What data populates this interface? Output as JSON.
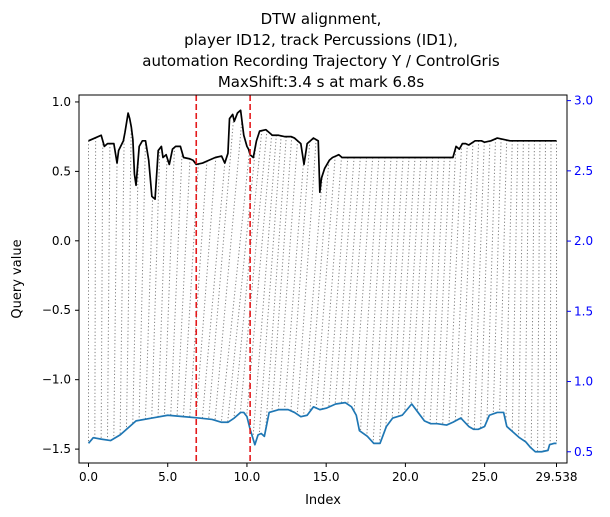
{
  "chart_data": {
    "type": "line",
    "title_lines": [
      "DTW alignment,",
      "player ID12, track Percussions (ID1),",
      "automation Recording Trajectory Y / ControlGris",
      "MaxShift:3.4 s at mark 6.8s"
    ],
    "xlabel": "Index",
    "ylabel": "Query value",
    "xlim": [
      -0.6,
      30.2
    ],
    "ylim": [
      -1.6,
      1.05
    ],
    "y2lim": [
      0.42,
      3.04
    ],
    "x_ticks": [
      0.0,
      5.0,
      10.0,
      15.0,
      20.0,
      25.0,
      29.538
    ],
    "x_tick_labels": [
      "0.0",
      "5.0",
      "10.0",
      "15.0",
      "20.0",
      "25.0",
      "29.538"
    ],
    "y_ticks": [
      -1.5,
      -1.0,
      -0.5,
      0.0,
      0.5,
      1.0
    ],
    "y_tick_labels": [
      "−1.5",
      "−1.0",
      "−0.5",
      "0.0",
      "0.5",
      "1.0"
    ],
    "y2_ticks": [
      0.5,
      1.0,
      1.5,
      2.0,
      2.5,
      3.0
    ],
    "y2_tick_labels": [
      "0.5",
      "1.0",
      "1.5",
      "2.0",
      "2.5",
      "3.0"
    ],
    "colors": {
      "query": "#000000",
      "reference": "#1f77b4",
      "markers": "#e41a1c",
      "alignment": "#808080",
      "right_axis": "#0000ff"
    },
    "markers_x": [
      6.8,
      10.2
    ],
    "grid": false,
    "series": [
      {
        "axis": "left",
        "points": [
          [
            0.0,
            0.72
          ],
          [
            0.4,
            0.74
          ],
          [
            0.8,
            0.76
          ],
          [
            1.0,
            0.68
          ],
          [
            1.2,
            0.7
          ],
          [
            1.6,
            0.7
          ],
          [
            1.8,
            0.56
          ],
          [
            1.9,
            0.65
          ],
          [
            2.2,
            0.72
          ],
          [
            2.3,
            0.78
          ],
          [
            2.5,
            0.92
          ],
          [
            2.6,
            0.88
          ],
          [
            2.7,
            0.82
          ],
          [
            2.8,
            0.73
          ],
          [
            2.9,
            0.48
          ],
          [
            3.0,
            0.4
          ],
          [
            3.2,
            0.68
          ],
          [
            3.4,
            0.72
          ],
          [
            3.6,
            0.72
          ],
          [
            3.8,
            0.58
          ],
          [
            4.0,
            0.32
          ],
          [
            4.2,
            0.3
          ],
          [
            4.4,
            0.65
          ],
          [
            4.6,
            0.68
          ],
          [
            4.7,
            0.6
          ],
          [
            4.9,
            0.62
          ],
          [
            5.1,
            0.55
          ],
          [
            5.3,
            0.66
          ],
          [
            5.5,
            0.68
          ],
          [
            5.8,
            0.68
          ],
          [
            6.0,
            0.6
          ],
          [
            6.4,
            0.59
          ],
          [
            6.6,
            0.58
          ],
          [
            6.8,
            0.55
          ],
          [
            7.2,
            0.56
          ],
          [
            7.6,
            0.58
          ],
          [
            8.0,
            0.6
          ],
          [
            8.4,
            0.61
          ],
          [
            8.6,
            0.56
          ],
          [
            8.8,
            0.63
          ],
          [
            8.9,
            0.88
          ],
          [
            9.1,
            0.91
          ],
          [
            9.2,
            0.86
          ],
          [
            9.4,
            0.92
          ],
          [
            9.6,
            0.94
          ],
          [
            9.8,
            0.76
          ],
          [
            10.0,
            0.68
          ],
          [
            10.1,
            0.66
          ],
          [
            10.2,
            0.62
          ],
          [
            10.4,
            0.6
          ],
          [
            10.6,
            0.72
          ],
          [
            10.8,
            0.79
          ],
          [
            11.2,
            0.8
          ],
          [
            11.4,
            0.78
          ],
          [
            11.6,
            0.76
          ],
          [
            12.0,
            0.76
          ],
          [
            12.4,
            0.75
          ],
          [
            12.8,
            0.75
          ],
          [
            13.0,
            0.74
          ],
          [
            13.2,
            0.72
          ],
          [
            13.4,
            0.7
          ],
          [
            13.6,
            0.55
          ],
          [
            13.8,
            0.7
          ],
          [
            14.0,
            0.72
          ],
          [
            14.2,
            0.74
          ],
          [
            14.5,
            0.72
          ],
          [
            14.6,
            0.35
          ],
          [
            14.7,
            0.45
          ],
          [
            14.9,
            0.52
          ],
          [
            15.2,
            0.58
          ],
          [
            15.4,
            0.6
          ],
          [
            15.6,
            0.61
          ],
          [
            15.8,
            0.62
          ],
          [
            16.0,
            0.6
          ],
          [
            17.0,
            0.6
          ],
          [
            18.0,
            0.6
          ],
          [
            19.0,
            0.6
          ],
          [
            20.0,
            0.6
          ],
          [
            21.0,
            0.6
          ],
          [
            22.0,
            0.6
          ],
          [
            22.5,
            0.6
          ],
          [
            23.0,
            0.6
          ],
          [
            23.2,
            0.68
          ],
          [
            23.4,
            0.66
          ],
          [
            23.6,
            0.7
          ],
          [
            23.8,
            0.7
          ],
          [
            24.0,
            0.69
          ],
          [
            24.4,
            0.72
          ],
          [
            24.8,
            0.72
          ],
          [
            25.0,
            0.71
          ],
          [
            25.4,
            0.72
          ],
          [
            25.8,
            0.74
          ],
          [
            26.2,
            0.73
          ],
          [
            26.6,
            0.72
          ],
          [
            27.0,
            0.72
          ],
          [
            28.0,
            0.72
          ],
          [
            29.0,
            0.72
          ],
          [
            29.54,
            0.72
          ]
        ]
      },
      {
        "axis": "right",
        "points": [
          [
            0.0,
            0.56
          ],
          [
            0.3,
            0.6
          ],
          [
            0.8,
            0.59
          ],
          [
            1.4,
            0.58
          ],
          [
            2.0,
            0.62
          ],
          [
            2.5,
            0.67
          ],
          [
            3.0,
            0.72
          ],
          [
            4.0,
            0.74
          ],
          [
            5.0,
            0.76
          ],
          [
            6.0,
            0.75
          ],
          [
            7.0,
            0.74
          ],
          [
            7.8,
            0.73
          ],
          [
            8.4,
            0.71
          ],
          [
            8.8,
            0.71
          ],
          [
            9.2,
            0.74
          ],
          [
            9.6,
            0.78
          ],
          [
            9.8,
            0.78
          ],
          [
            10.0,
            0.75
          ],
          [
            10.2,
            0.66
          ],
          [
            10.5,
            0.55
          ],
          [
            10.7,
            0.62
          ],
          [
            10.9,
            0.63
          ],
          [
            11.1,
            0.61
          ],
          [
            11.4,
            0.78
          ],
          [
            12.0,
            0.8
          ],
          [
            12.6,
            0.8
          ],
          [
            13.0,
            0.78
          ],
          [
            13.4,
            0.75
          ],
          [
            13.8,
            0.76
          ],
          [
            14.2,
            0.82
          ],
          [
            14.6,
            0.8
          ],
          [
            15.0,
            0.81
          ],
          [
            15.6,
            0.84
          ],
          [
            16.2,
            0.85
          ],
          [
            16.6,
            0.82
          ],
          [
            16.9,
            0.76
          ],
          [
            17.1,
            0.65
          ],
          [
            17.6,
            0.61
          ],
          [
            18.0,
            0.56
          ],
          [
            18.4,
            0.56
          ],
          [
            18.8,
            0.68
          ],
          [
            19.2,
            0.74
          ],
          [
            19.8,
            0.76
          ],
          [
            20.4,
            0.84
          ],
          [
            20.8,
            0.78
          ],
          [
            21.2,
            0.72
          ],
          [
            21.6,
            0.7
          ],
          [
            22.0,
            0.7
          ],
          [
            22.6,
            0.69
          ],
          [
            23.0,
            0.71
          ],
          [
            23.5,
            0.74
          ],
          [
            24.0,
            0.68
          ],
          [
            24.3,
            0.66
          ],
          [
            24.6,
            0.66
          ],
          [
            25.0,
            0.68
          ],
          [
            25.3,
            0.76
          ],
          [
            25.8,
            0.78
          ],
          [
            26.2,
            0.78
          ],
          [
            26.4,
            0.68
          ],
          [
            26.8,
            0.64
          ],
          [
            27.2,
            0.6
          ],
          [
            27.6,
            0.57
          ],
          [
            27.9,
            0.53
          ],
          [
            28.2,
            0.5
          ],
          [
            28.6,
            0.5
          ],
          [
            29.0,
            0.51
          ],
          [
            29.1,
            0.55
          ],
          [
            29.4,
            0.56
          ],
          [
            29.54,
            0.56
          ]
        ]
      }
    ]
  }
}
